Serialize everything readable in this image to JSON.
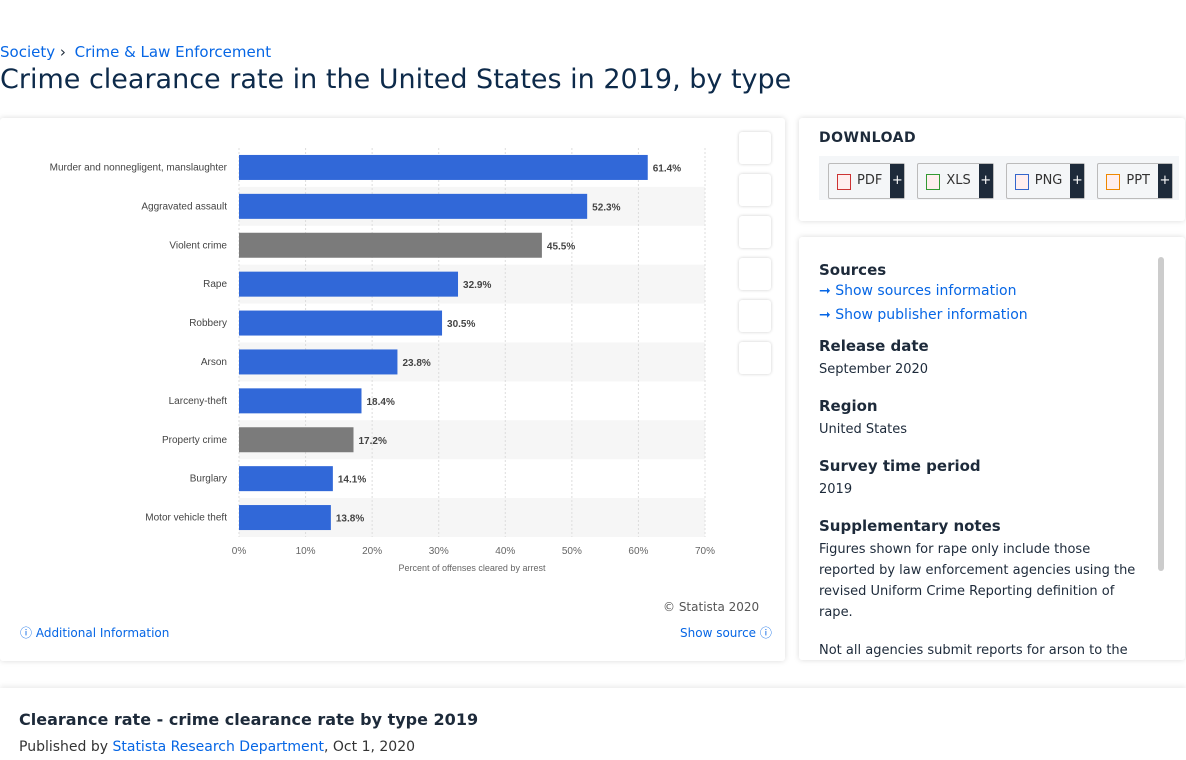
{
  "breadcrumb": [
    "Society",
    "Crime & Law Enforcement"
  ],
  "title": "Crime clearance rate in the United States in 2019, by type",
  "chart_data": {
    "type": "hbar",
    "categories": [
      "Murder and nonnegligent, manslaughter",
      "Aggravated assault",
      "Violent crime",
      "Rape",
      "Robbery",
      "Arson",
      "Larceny-theft",
      "Property crime",
      "Burglary",
      "Motor vehicle theft"
    ],
    "values": [
      61.4,
      52.3,
      45.5,
      32.9,
      30.5,
      23.8,
      18.4,
      17.2,
      14.1,
      13.8
    ],
    "value_labels": [
      "61.4%",
      "52.3%",
      "45.5%",
      "32.9%",
      "30.5%",
      "23.8%",
      "18.4%",
      "17.2%",
      "14.1%",
      "13.8%"
    ],
    "colors": [
      "#3168d8",
      "#3168d8",
      "#7b7b7b",
      "#3168d8",
      "#3168d8",
      "#3168d8",
      "#3168d8",
      "#7b7b7b",
      "#3168d8",
      "#3168d8"
    ],
    "xlim": [
      0,
      70
    ],
    "xticks": [
      {
        "value": 0,
        "label": "0%"
      },
      {
        "value": 10,
        "label": "10%"
      },
      {
        "value": 20,
        "label": "20%"
      },
      {
        "value": 30,
        "label": "30%"
      },
      {
        "value": 40,
        "label": "40%"
      },
      {
        "value": 50,
        "label": "50%"
      },
      {
        "value": 60,
        "label": "60%"
      },
      {
        "value": 70,
        "label": "70%"
      }
    ],
    "xlabel": "Percent of offenses cleared by arrest",
    "grid": true
  },
  "chart_footer": {
    "copyright": "© Statista 2020",
    "additional": "Additional Information",
    "show_source": "Show source"
  },
  "download": {
    "heading": "DOWNLOAD",
    "formats": [
      "PDF",
      "XLS",
      "PNG",
      "PPT"
    ]
  },
  "details": {
    "sources_heading": "Sources",
    "show_sources": "Show sources information",
    "show_publisher": "Show publisher information",
    "release_heading": "Release date",
    "release": "September 2020",
    "region_heading": "Region",
    "region": "United States",
    "period_heading": "Survey time period",
    "period": "2019",
    "notes_heading": "Supplementary notes",
    "notes": [
      "Figures shown for rape only include those reported by law enforcement agencies using the revised Uniform Crime Reporting definition of rape.",
      "Not all agencies submit reports for arson to the FBI. As a result, the number of reports the FBI uses to"
    ]
  },
  "bottom": {
    "title": "Clearance rate - crime clearance rate by type 2019",
    "published_prefix": "Published by",
    "publisher": "Statista Research Department",
    "date": ", Oct 1, 2020"
  }
}
